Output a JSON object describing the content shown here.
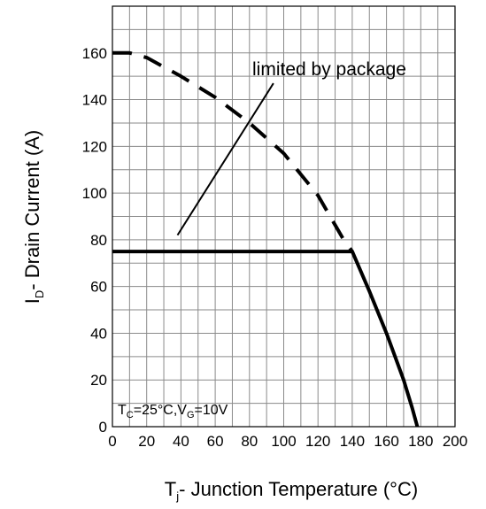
{
  "chart_data": {
    "type": "line",
    "xlabel_parts": {
      "main": "T",
      "sub": "j",
      "rest": "- Junction Temperature (°C)"
    },
    "ylabel_parts": {
      "main": "I",
      "sub": "D",
      "rest": "- Drain Current (A)"
    },
    "xlim": [
      0,
      200
    ],
    "ylim": [
      0,
      180
    ],
    "x_ticks": [
      0,
      20,
      40,
      60,
      80,
      100,
      120,
      140,
      160,
      180,
      200
    ],
    "y_ticks": [
      0,
      20,
      40,
      60,
      80,
      100,
      120,
      140,
      160
    ],
    "grid": true,
    "series": [
      {
        "style": "dashed",
        "x": [
          0,
          10,
          20,
          40,
          60,
          80,
          100,
          120,
          135,
          140
        ],
        "y": [
          160,
          160,
          158,
          150,
          141,
          130,
          117,
          99,
          80,
          75
        ]
      },
      {
        "style": "solid",
        "x": [
          0,
          140,
          150,
          160,
          170,
          175,
          178
        ],
        "y": [
          75,
          75,
          58,
          40,
          20,
          8,
          0
        ]
      }
    ],
    "annotations": [
      {
        "text": "limited by package",
        "pointer_from": [
          38,
          82
        ],
        "pointer_to": [
          94,
          147
        ]
      }
    ],
    "conditions": {
      "tc_main": "T",
      "tc_sub": "C",
      "tc_value": "=25°C,",
      "vg_main": "V",
      "vg_sub": "G",
      "vg_value": "=10V"
    }
  }
}
